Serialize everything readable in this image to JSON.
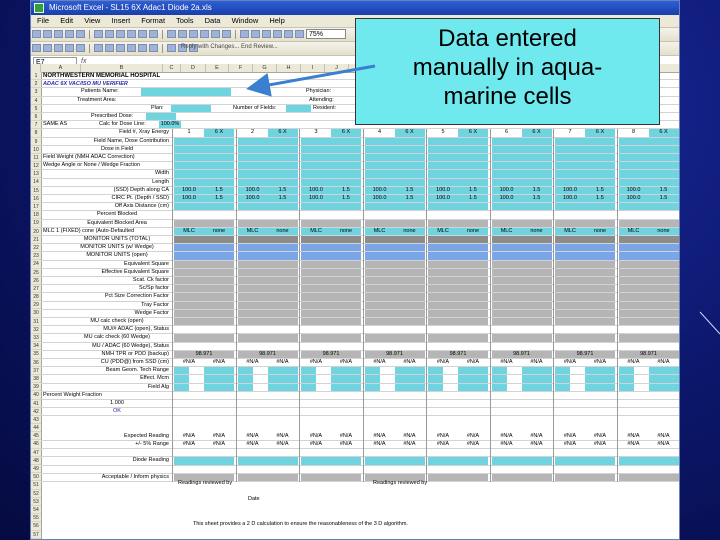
{
  "window": {
    "title": "Microsoft Excel - SL15 6X Adac1 Diode 2a.xls",
    "menu": [
      "File",
      "Edit",
      "View",
      "Insert",
      "Format",
      "Tools",
      "Data",
      "Window",
      "Help"
    ],
    "zoom": "75%",
    "reply_text": "Reply with Changes...  End Review...",
    "name_box": "E7"
  },
  "sheet": {
    "hospital": "NORTHWESTERN MEMORIAL HOSPITAL",
    "subtitle": "ADAC 6X VAC/ISO MU VERIFIER",
    "patient_label": "Patients Name:",
    "treatment_label": "Treatment Area:",
    "physician_label": "Physician:",
    "attending_label": "Attending:",
    "resident_label": "Resident:",
    "plan_label": "Plan:",
    "num_fields_label": "Number of Fields:",
    "prescribed_label": "Prescribed Dose:",
    "calc_line_label": "Calc for Dose Line:",
    "calc_line_value": "100.0%",
    "same_as_label": "SAME AS",
    "rows": [
      {
        "label": "Field #, Xray Energy",
        "align": "r"
      },
      {
        "label": "Field Name, Dose Contribution",
        "align": "r"
      },
      {
        "label": "Dose in Field",
        "align": "c"
      },
      {
        "label": "Field Weight (NMH ADAC Correction)",
        "align": "l"
      },
      {
        "label": "Wedge Angle or None / Wedge Fraction",
        "align": "l"
      },
      {
        "label": "Width",
        "align": "r"
      },
      {
        "label": "Length",
        "align": "r"
      },
      {
        "label": "(SSD) Depth along CA",
        "align": "r"
      },
      {
        "label": "CIRC Pt. (Depth / SSD)",
        "align": "r"
      },
      {
        "label": "Off Axis Distance (cm)",
        "align": "r"
      },
      {
        "label": "Percent Blocked",
        "align": "c"
      },
      {
        "label": "Equivalent Blocked Area",
        "align": "c"
      },
      {
        "label": "MLC 1 (FIXED) cone (Auto-Defaulted",
        "align": "l"
      },
      {
        "label": "MONITOR UNITS (TOTAL)",
        "align": "c"
      },
      {
        "label": "MONITOR UNITS (w/ Wedge)",
        "align": "c"
      },
      {
        "label": "MONITOR UNITS (open)",
        "align": "c"
      },
      {
        "label": "Equivalent Square",
        "align": "r"
      },
      {
        "label": "Effective Equivalent Square",
        "align": "r"
      },
      {
        "label": "Scat. Ck factor",
        "align": "r"
      },
      {
        "label": "Sc/Sp factor",
        "align": "r"
      },
      {
        "label": "Pct Size Correction Factor",
        "align": "r"
      },
      {
        "label": "Tray Factor",
        "align": "r"
      },
      {
        "label": "Wedge Factor",
        "align": "r"
      },
      {
        "label": "MU calc check (open)",
        "align": "c"
      },
      {
        "label": "MU/# ADAC (open), Status",
        "align": "r"
      },
      {
        "label": "MU calc check (60 Wedge)",
        "align": "c"
      },
      {
        "label": "MU / ADAC (60 Wedge), Status",
        "align": "r"
      },
      {
        "label": "NMH TPR or PDD (backup)",
        "align": "r"
      },
      {
        "label": "CU (PDD@) from SSD (cm)",
        "align": "r"
      },
      {
        "label": "Beam Geom. Tech Range",
        "align": "r"
      },
      {
        "label": "Effect. Mcm",
        "align": "r"
      },
      {
        "label": "Field Alg",
        "align": "r"
      },
      {
        "label": "Percent Weight Fraction",
        "align": "l"
      },
      {
        "label": "1.000",
        "align": "c"
      },
      {
        "label": "OK",
        "align": "c"
      },
      {
        "label": "Expected Reading",
        "align": "r"
      },
      {
        "label": "+/- 5% Range",
        "align": "r"
      },
      {
        "label": "",
        "align": "r"
      },
      {
        "label": "Diode Reading",
        "align": "r"
      },
      {
        "label": "",
        "align": "r"
      },
      {
        "label": "Acceptable / Inform physics",
        "align": "r"
      }
    ],
    "field_energy": "6 X",
    "field_numbers": [
      "1",
      "2",
      "3",
      "4",
      "5",
      "6",
      "7",
      "8"
    ],
    "tpr_value": "98.971",
    "ssd_value": "100.0",
    "depth_value": "1.5",
    "na_value": "#N/A",
    "mlc_value": "MLC",
    "none_value": "none",
    "footer_notes": [
      "Readings reviewed by",
      "Readings reviewed by",
      "Date",
      "This sheet provides a 2 D calculation to ensure the reasonableness of the 3 D algorithm."
    ]
  },
  "callout": {
    "line1": "Data entered",
    "line2": "manually in aqua-",
    "line3": "marine cells"
  },
  "colors": {
    "aqua": "#6fd3e0",
    "callout_bg": "#6fe8ee",
    "slide_bg": "#0b1668",
    "arrow": "#3a7fd0"
  }
}
